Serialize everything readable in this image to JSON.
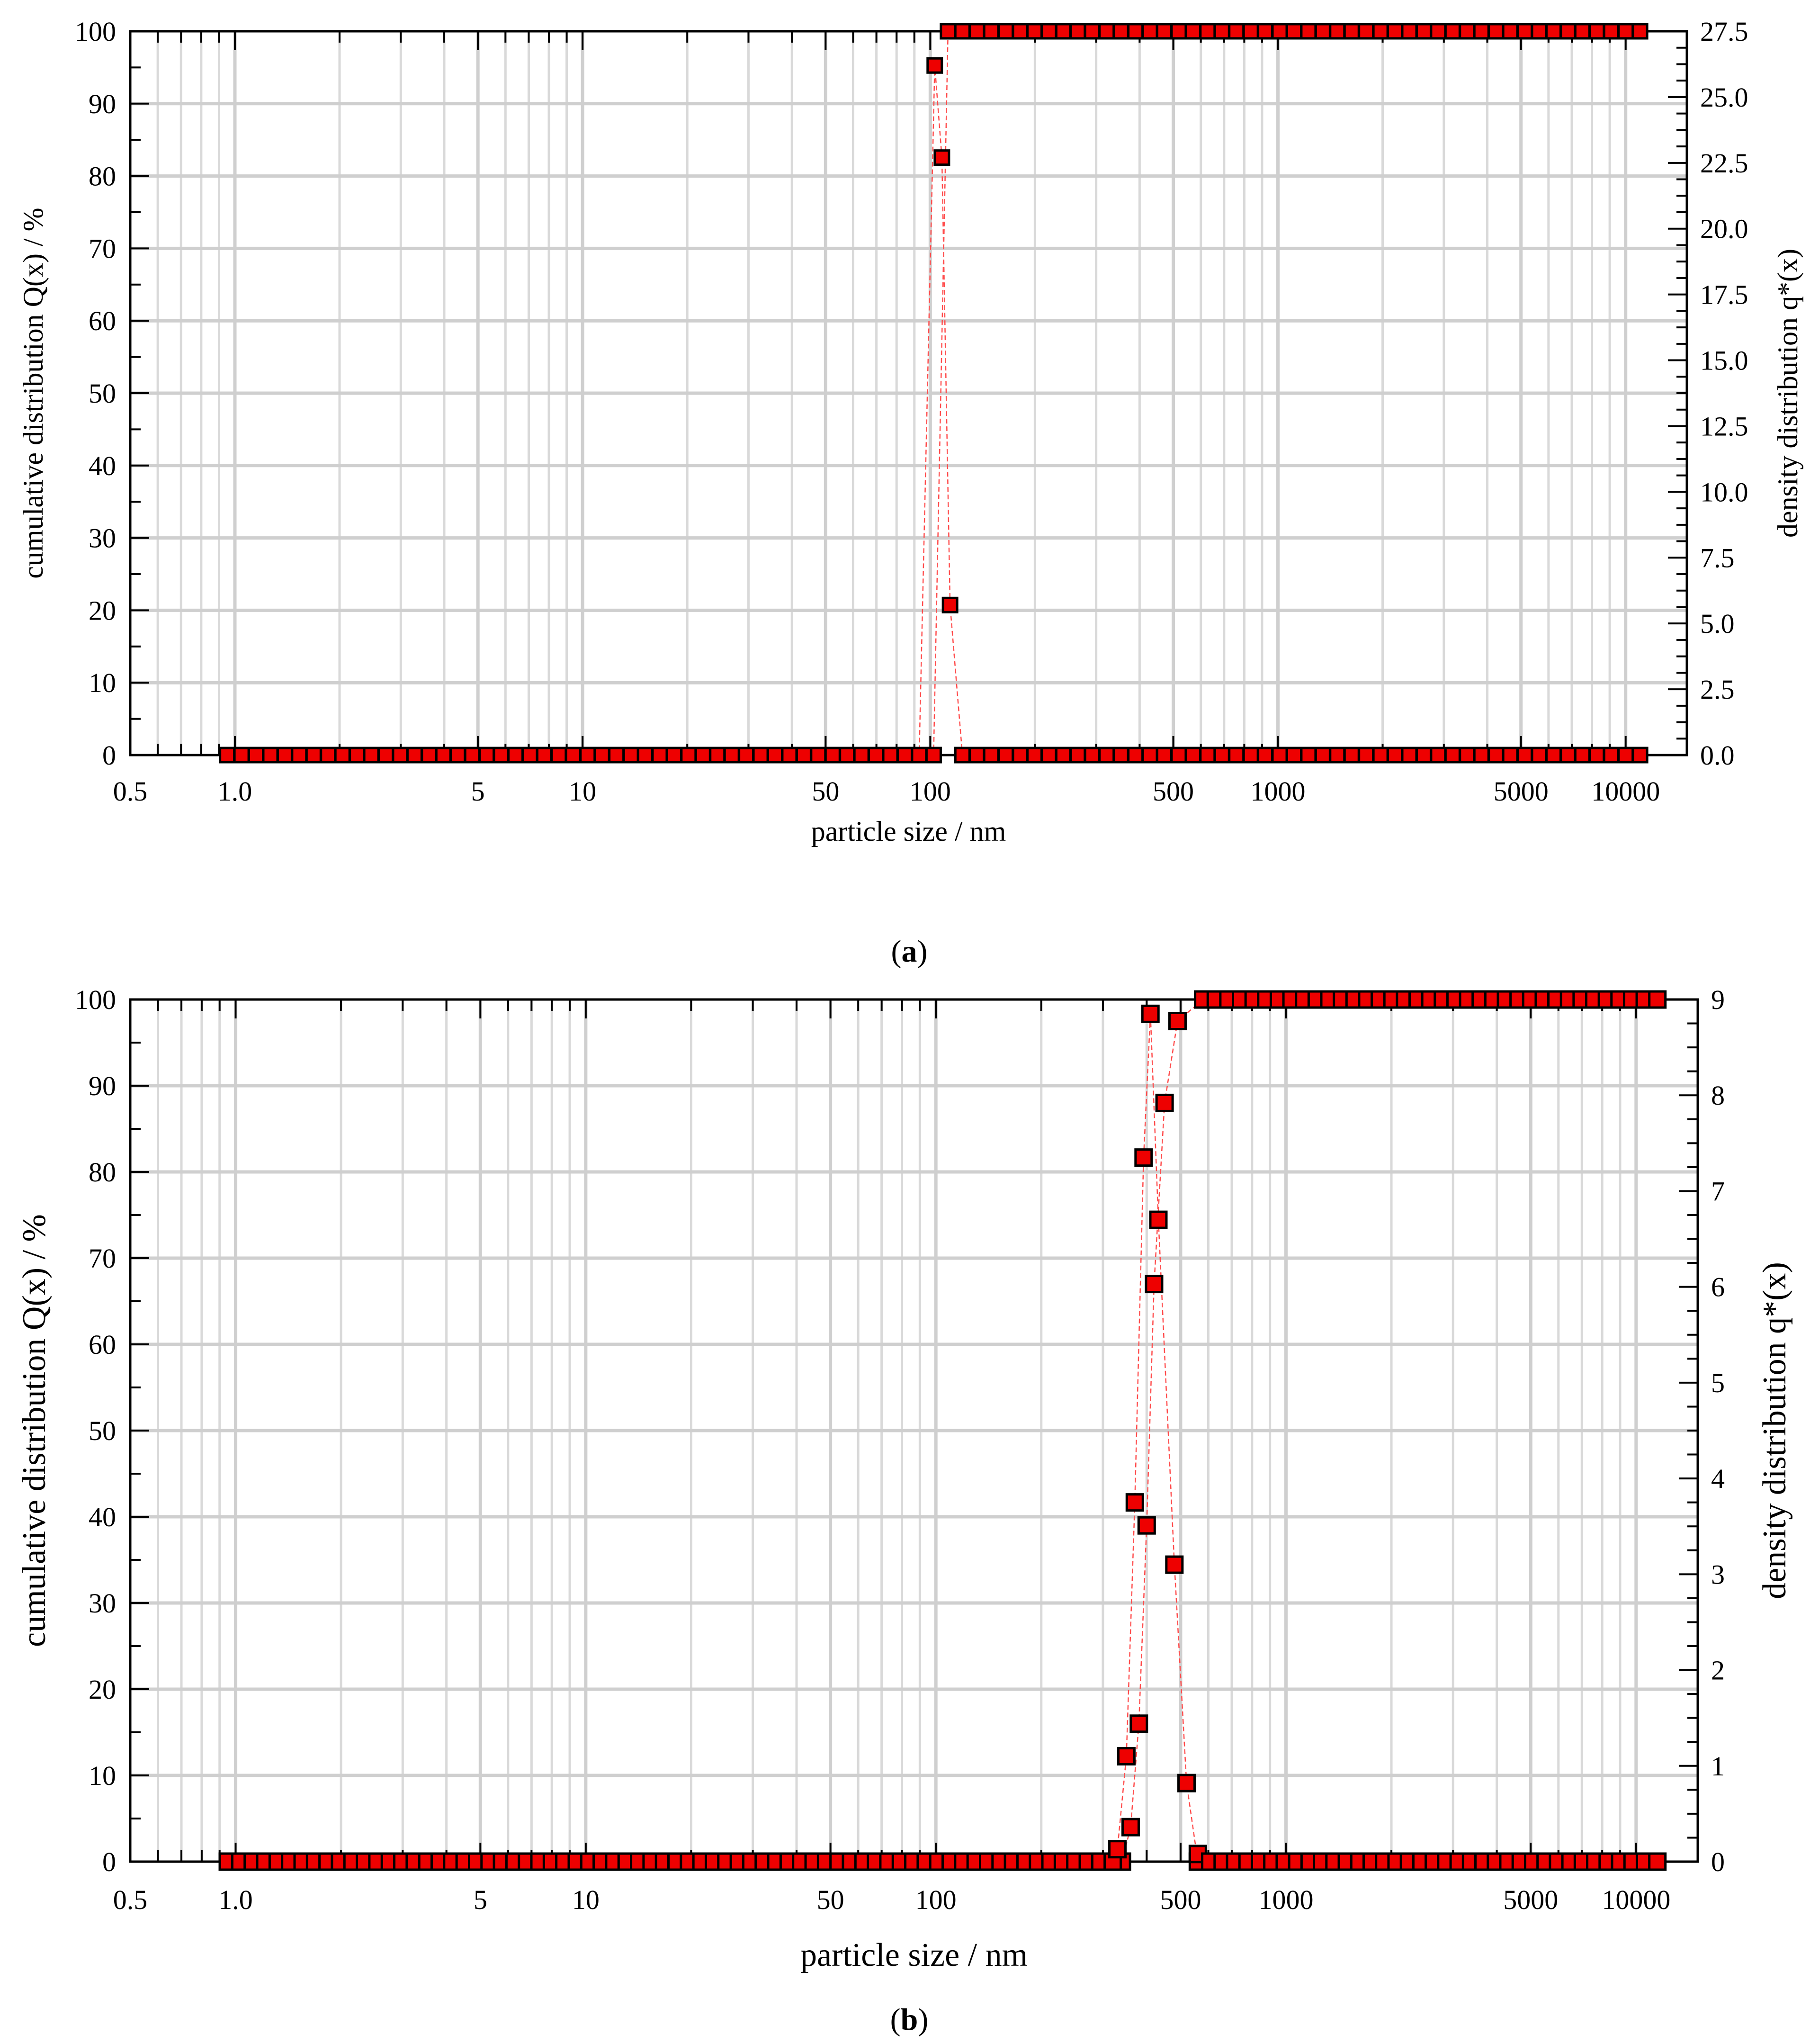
{
  "colors": {
    "marker_fill": "#ee0000",
    "marker_edge": "#000000",
    "line": "#ff4d4d",
    "grid": "#cfcfcf"
  },
  "chart_data": [
    {
      "type": "scatter",
      "panel_label_open": "(",
      "panel_label_letter": "a",
      "panel_label_close": ")",
      "xlabel": "particle size / nm",
      "ylabel_left": "cumulative distribution Q(x) / %",
      "ylabel_right": "density distribution q*(x)",
      "x_scale": "log",
      "xlim": [
        0.5,
        15000
      ],
      "ylim_left": [
        0,
        100
      ],
      "ylim_right": [
        0,
        27.5
      ],
      "grid": true,
      "x_tick_labels": [
        "0.5",
        "1.0",
        "5",
        "10",
        "50",
        "100",
        "500",
        "1000",
        "5000",
        "10000"
      ],
      "x_tick_values": [
        0.5,
        1,
        5,
        10,
        50,
        100,
        500,
        1000,
        5000,
        10000
      ],
      "y_left_ticks": [
        "0",
        "10",
        "20",
        "30",
        "40",
        "50",
        "60",
        "70",
        "80",
        "90",
        "100"
      ],
      "y_right_ticks": [
        "0.0",
        "2.5",
        "5.0",
        "7.5",
        "10.0",
        "12.5",
        "15.0",
        "17.5",
        "20.0",
        "22.5",
        "25.0",
        "27.5"
      ],
      "series": [
        {
          "axis": "left",
          "x_range": [
            0.95,
            11000
          ],
          "points_per_decade": 24,
          "step_x": 106,
          "low_value": 0,
          "high_value": 100
        },
        {
          "axis": "right",
          "x_range": [
            0.95,
            11000
          ],
          "points_per_decade": 24,
          "baseline": 0,
          "peaks": [
            {
              "x": 103,
              "y": 26.2
            },
            {
              "x": 108,
              "y": 22.7
            },
            {
              "x": 114,
              "y": 5.7
            }
          ]
        }
      ]
    },
    {
      "type": "scatter",
      "panel_label_open": "(",
      "panel_label_letter": "b",
      "panel_label_close": ")",
      "xlabel": "particle size / nm",
      "ylabel_left": "cumulative distribution Q(x) / %",
      "ylabel_right": "density distribution q*(x)",
      "x_scale": "log",
      "xlim": [
        0.5,
        15000
      ],
      "ylim_left": [
        0,
        100
      ],
      "ylim_right": [
        0,
        9
      ],
      "grid": true,
      "x_tick_labels": [
        "0.5",
        "1.0",
        "5",
        "10",
        "50",
        "100",
        "500",
        "1000",
        "5000",
        "10000"
      ],
      "x_tick_values": [
        0.5,
        1,
        5,
        10,
        50,
        100,
        500,
        1000,
        5000,
        10000
      ],
      "y_left_ticks": [
        "0",
        "10",
        "20",
        "30",
        "40",
        "50",
        "60",
        "70",
        "80",
        "90",
        "100"
      ],
      "y_right_ticks": [
        "0",
        "1",
        "2",
        "3",
        "4",
        "5",
        "6",
        "7",
        "8",
        "9"
      ],
      "series": [
        {
          "axis": "left",
          "x_range": [
            0.95,
            11500
          ],
          "points_per_decade": 28,
          "low_value": 0,
          "high_value": 100,
          "x_range_low": [
            0.95,
            330
          ],
          "x_range_high": [
            580,
            11500
          ],
          "transition": [
            {
              "x": 340,
              "y": 0
            },
            {
              "x": 360,
              "y": 4
            },
            {
              "x": 380,
              "y": 16
            },
            {
              "x": 400,
              "y": 39
            },
            {
              "x": 420,
              "y": 67
            },
            {
              "x": 450,
              "y": 88
            },
            {
              "x": 490,
              "y": 97.5
            }
          ]
        },
        {
          "axis": "right",
          "x_range": [
            0.95,
            11500
          ],
          "points_per_decade": 28,
          "baseline": 0,
          "x_range_low": [
            0.95,
            320
          ],
          "x_range_high": [
            560,
            11500
          ],
          "peaks": [
            {
              "x": 330,
              "y": 0.13
            },
            {
              "x": 350,
              "y": 1.1
            },
            {
              "x": 370,
              "y": 3.75
            },
            {
              "x": 392,
              "y": 7.35
            },
            {
              "x": 410,
              "y": 8.85
            },
            {
              "x": 432,
              "y": 6.7
            },
            {
              "x": 480,
              "y": 3.1
            },
            {
              "x": 520,
              "y": 0.82
            },
            {
              "x": 560,
              "y": 0.08
            }
          ]
        }
      ]
    }
  ]
}
